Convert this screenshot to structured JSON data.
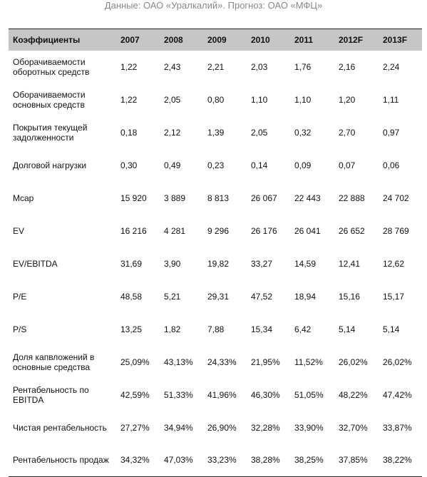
{
  "caption": "Данные: ОАО «Уралкалий». Прогноз: ОАО «МФЦ»",
  "table": {
    "header": [
      "Коэффициенты",
      "2007",
      "2008",
      "2009",
      "2010",
      "2011",
      "2012F",
      "2013F"
    ],
    "rows": [
      [
        "Оборачиваемости оборотных средств",
        "1,22",
        "2,43",
        "2,21",
        "2,03",
        "1,76",
        "2,16",
        "2,24"
      ],
      [
        "Оборачиваемости основных средств",
        "1,22",
        "2,05",
        "0,80",
        "1,10",
        "1,10",
        "1,20",
        "1,11"
      ],
      [
        "Покрытия текущей задолженности",
        "0,18",
        "2,12",
        "1,39",
        "2,05",
        "0,32",
        "2,70",
        "0,97"
      ],
      [
        "Долговой нагрузки",
        "0,30",
        "0,49",
        "0,23",
        "0,14",
        "0,09",
        "0,07",
        "0,06"
      ],
      [
        "Mcap",
        "15 920",
        "3 889",
        "8 813",
        "26 067",
        "22 443",
        "22 888",
        "24 702"
      ],
      [
        "EV",
        "16 216",
        "4 281",
        "9 296",
        "26 176",
        "26 041",
        "26 652",
        "28 769"
      ],
      [
        "EV/EBITDA",
        "31,69",
        "3,90",
        "19,82",
        "33,27",
        "14,59",
        "12,41",
        "12,62"
      ],
      [
        "P/E",
        "48,58",
        "5,21",
        "29,31",
        "47,52",
        "18,94",
        "15,16",
        "15,17"
      ],
      [
        "P/S",
        "13,25",
        "1,82",
        "7,88",
        "15,34",
        "6,42",
        "5,14",
        "5,14"
      ],
      [
        "Доля капвложений в основные средства",
        "25,09%",
        "43,13%",
        "24,33%",
        "21,95%",
        "11,52%",
        "26,02%",
        "26,02%"
      ],
      [
        "Рентабельность по EBITDA",
        "42,59%",
        "51,33%",
        "41,96%",
        "46,30%",
        "51,05%",
        "48,22%",
        "47,42%"
      ],
      [
        "Чистая рентабельность",
        "27,27%",
        "34,94%",
        "26,90%",
        "32,28%",
        "33,90%",
        "32,70%",
        "33,87%"
      ],
      [
        "Рентабельность продаж",
        "34,32%",
        "47,03%",
        "33,23%",
        "38,28%",
        "38,25%",
        "37,85%",
        "38,22%"
      ]
    ]
  }
}
